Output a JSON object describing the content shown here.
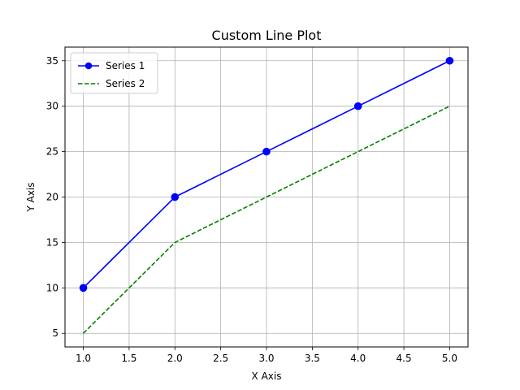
{
  "chart_data": {
    "type": "line",
    "title": "Custom Line Plot",
    "xlabel": "X Axis",
    "ylabel": "Y Axis",
    "xlim": [
      0.8,
      5.2
    ],
    "ylim": [
      3.5,
      36.5
    ],
    "xticks": [
      1.0,
      1.5,
      2.0,
      2.5,
      3.0,
      3.5,
      4.0,
      4.5,
      5.0
    ],
    "xtick_labels": [
      "1.0",
      "1.5",
      "2.0",
      "2.5",
      "3.0",
      "3.5",
      "4.0",
      "4.5",
      "5.0"
    ],
    "yticks": [
      5,
      10,
      15,
      20,
      25,
      30,
      35
    ],
    "ytick_labels": [
      "5",
      "10",
      "15",
      "20",
      "25",
      "30",
      "35"
    ],
    "grid": true,
    "legend_position": "top-left",
    "series": [
      {
        "name": "Series 1",
        "x": [
          1,
          2,
          3,
          4,
          5
        ],
        "y": [
          10,
          20,
          25,
          30,
          35
        ],
        "color": "#0000ff",
        "line_style": "solid",
        "marker": "circle"
      },
      {
        "name": "Series 2",
        "x": [
          1,
          2,
          3,
          4,
          5
        ],
        "y": [
          5,
          15,
          20,
          25,
          30
        ],
        "color": "#008000",
        "line_style": "dashed",
        "marker": "none"
      }
    ]
  }
}
